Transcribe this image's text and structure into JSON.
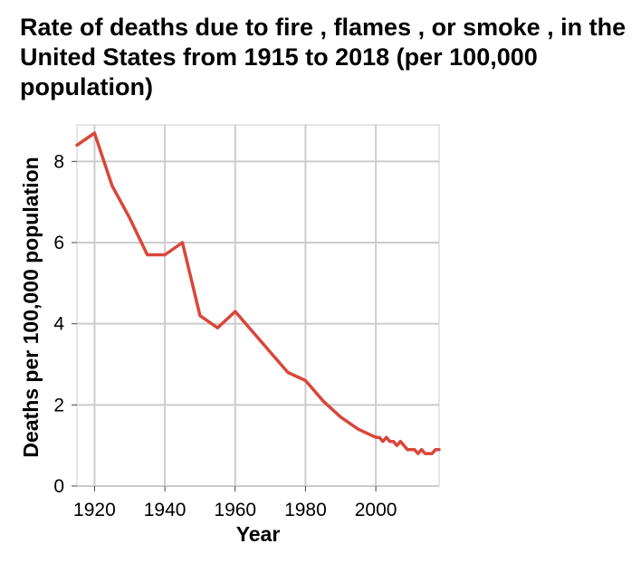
{
  "chart_data": {
    "type": "line",
    "title": "Rate of deaths due to fire , flames , or smoke , in the United States from 1915 to 2018 (per 100,000 population)",
    "xlabel": "Year",
    "ylabel": "Deaths per 100,000 population",
    "xlim": [
      1915,
      2018
    ],
    "ylim": [
      0,
      8.9
    ],
    "x_ticks": [
      1920,
      1940,
      1960,
      1980,
      2000
    ],
    "y_ticks": [
      0,
      2,
      4,
      6,
      8
    ],
    "grid": true,
    "legend": "none",
    "colors": {
      "line": "#d9463b",
      "grid": "#cccccc"
    },
    "series": [
      {
        "x": [
          1915,
          1920,
          1925,
          1930,
          1935,
          1940,
          1945,
          1950,
          1955,
          1960,
          1965,
          1970,
          1975,
          1980,
          1985,
          1990,
          1995,
          2000,
          2001,
          2002,
          2003,
          2004,
          2005,
          2006,
          2007,
          2008,
          2009,
          2010,
          2011,
          2012,
          2013,
          2014,
          2015,
          2016,
          2017,
          2018
        ],
        "y": [
          8.4,
          8.7,
          7.4,
          6.6,
          5.7,
          5.7,
          6.0,
          4.2,
          3.9,
          4.3,
          3.8,
          3.3,
          2.8,
          2.6,
          2.1,
          1.7,
          1.4,
          1.2,
          1.2,
          1.1,
          1.2,
          1.1,
          1.1,
          1.0,
          1.1,
          1.0,
          0.9,
          0.9,
          0.9,
          0.8,
          0.9,
          0.8,
          0.8,
          0.8,
          0.9,
          0.9
        ]
      }
    ]
  }
}
